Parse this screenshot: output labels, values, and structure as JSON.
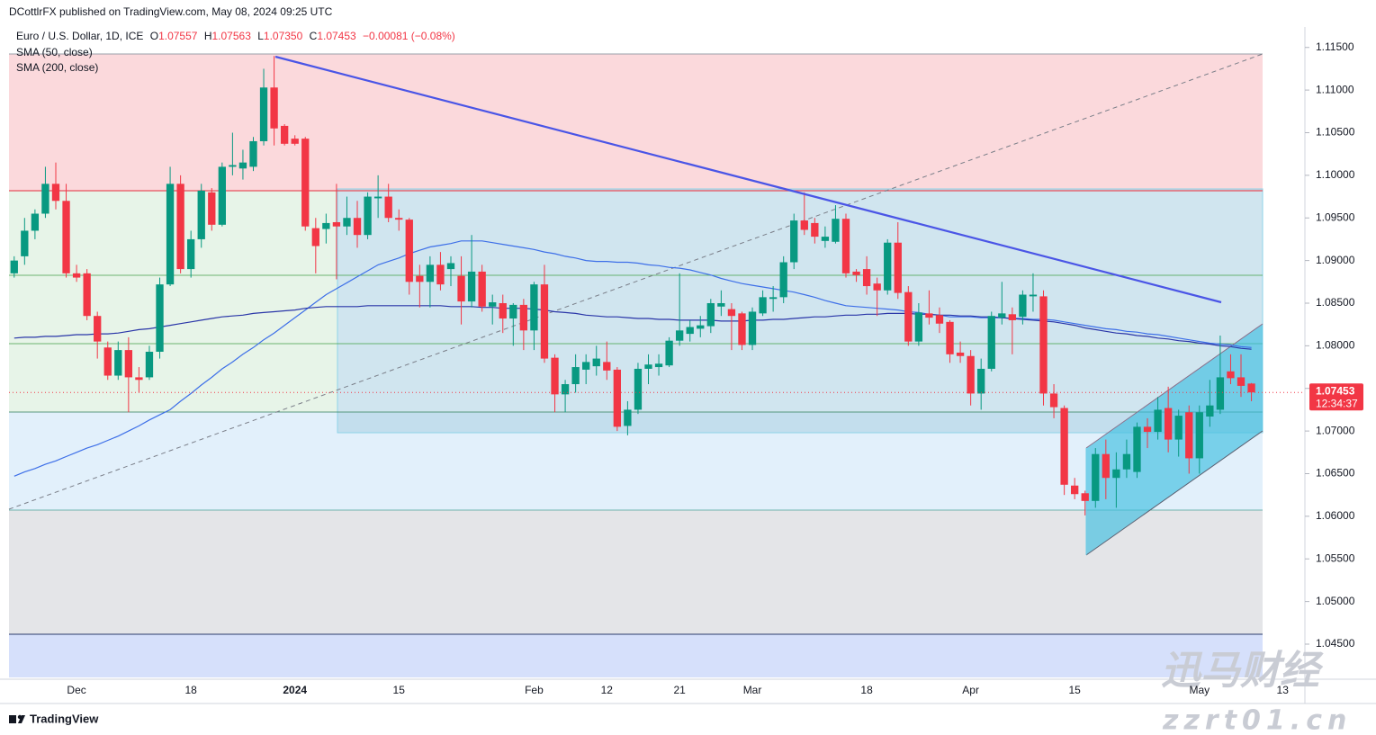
{
  "header": {
    "published": "DCottlrFX published on TradingView.com, May 08, 2024 09:25 UTC",
    "ohlc": [
      {
        "label": "O",
        "value": "1.07557"
      },
      {
        "label": "H",
        "value": "1.07563"
      },
      {
        "label": "L",
        "value": "1.07350"
      },
      {
        "label": "C",
        "value": "1.07453"
      }
    ],
    "change": "−0.00081 (−0.08%)"
  },
  "footer": {
    "brand": "TradingView"
  },
  "watermark": {
    "name": "迅马财经",
    "url": "zzrt01.cn"
  },
  "chart_data": {
    "type": "candlestick",
    "title": "Euro / U.S. Dollar, 1D, ICE",
    "up_color": "#089981",
    "down_color": "#f23645",
    "grid": false,
    "last_price_label": "1.07453",
    "countdown": "12:34:37",
    "categories": [
      null,
      null,
      null,
      null,
      null,
      null,
      "Dec",
      null,
      null,
      null,
      null,
      null,
      null,
      null,
      null,
      null,
      null,
      "18",
      null,
      null,
      null,
      null,
      null,
      null,
      null,
      null,
      null,
      "2024",
      null,
      null,
      null,
      null,
      null,
      null,
      null,
      null,
      null,
      "15",
      null,
      null,
      null,
      null,
      null,
      null,
      null,
      null,
      null,
      null,
      null,
      null,
      "Feb",
      null,
      null,
      null,
      null,
      null,
      null,
      "12",
      null,
      null,
      null,
      null,
      null,
      null,
      "21",
      null,
      null,
      null,
      null,
      null,
      null,
      "Mar",
      null,
      null,
      null,
      null,
      null,
      null,
      null,
      null,
      null,
      null,
      "18",
      null,
      null,
      null,
      null,
      null,
      null,
      null,
      null,
      null,
      "Apr",
      null,
      null,
      null,
      null,
      null,
      null,
      null,
      null,
      null,
      "15",
      null,
      null,
      null,
      null,
      null,
      null,
      null,
      null,
      null,
      null,
      null,
      "May",
      null,
      null,
      null,
      null,
      null,
      null,
      null,
      "13"
    ],
    "open": [
      1.0885,
      1.0905,
      1.0935,
      1.0955,
      1.099,
      1.097,
      1.0885,
      1.0885,
      1.0835,
      1.0798,
      1.0765,
      1.0795,
      1.0763,
      1.0763,
      1.0793,
      1.0872,
      1.099,
      1.089,
      1.0925,
      1.098,
      1.0942,
      1.101,
      1.1008,
      1.101,
      1.104,
      1.1103,
      1.1058,
      1.1043,
      1.1043,
      1.0938,
      1.0937,
      1.0945,
      1.094,
      1.095,
      1.093,
      1.0973,
      1.0975,
      1.095,
      1.0948,
      1.0882,
      1.0875,
      1.0895,
      1.089,
      1.0882,
      1.0852,
      1.0887,
      1.0846,
      1.085,
      1.0832,
      1.0848,
      1.0818,
      1.0872,
      1.0786,
      1.0743,
      1.0755,
      1.0772,
      1.0776,
      1.0781,
      1.0772,
      1.0706,
      1.0725,
      1.0773,
      1.0775,
      1.0777,
      1.0806,
      1.0814,
      1.082,
      1.0823,
      1.0846,
      1.0843,
      1.0838,
      1.0801,
      1.0838,
      1.0855,
      1.0857,
      1.0898,
      1.0947,
      1.0944,
      1.0923,
      1.0922,
      1.0949,
      1.0887,
      1.089,
      1.0873,
      1.0865,
      1.0921,
      1.0863,
      1.0805,
      1.0838,
      1.0836,
      1.0828,
      1.0792,
      1.0788,
      1.0744,
      1.0773,
      1.0833,
      1.0837,
      1.0834,
      1.0858,
      1.0858,
      1.0744,
      1.0727,
      1.0636,
      1.0627,
      1.0618,
      1.0673,
      1.0645,
      1.0655,
      1.0652,
      1.0705,
      1.0699,
      1.0727,
      1.069,
      1.0722,
      1.0668,
      1.0717,
      1.0725,
      1.077,
      1.0763,
      1.07557,
      null,
      null,
      null
    ],
    "high": [
      1.0905,
      1.095,
      1.096,
      1.101,
      1.1015,
      1.099,
      1.0895,
      1.089,
      1.084,
      1.0805,
      1.0805,
      1.081,
      1.0775,
      1.08,
      1.088,
      1.101,
      1.1,
      1.0935,
      1.099,
      1.0985,
      1.1015,
      1.105,
      1.103,
      1.1045,
      1.1125,
      1.114,
      1.106,
      1.1047,
      1.1045,
      1.095,
      1.0955,
      1.099,
      1.0975,
      1.097,
      1.098,
      1.1,
      1.099,
      1.096,
      1.095,
      1.0895,
      1.0905,
      1.091,
      1.0905,
      1.0905,
      1.093,
      1.0895,
      1.086,
      1.086,
      1.085,
      1.0855,
      1.0875,
      1.0895,
      1.079,
      1.076,
      1.079,
      1.079,
      1.08,
      1.0805,
      1.0775,
      1.0735,
      1.078,
      1.079,
      1.079,
      1.081,
      1.0885,
      1.083,
      1.0835,
      1.0855,
      1.0865,
      1.085,
      1.084,
      1.0845,
      1.0865,
      1.087,
      1.0905,
      1.0955,
      1.098,
      1.095,
      1.094,
      1.0965,
      1.0955,
      1.089,
      1.0905,
      1.088,
      1.0925,
      1.0945,
      1.087,
      1.085,
      1.0865,
      1.0845,
      1.083,
      1.0805,
      1.0795,
      1.0785,
      1.084,
      1.0875,
      1.0845,
      1.0865,
      1.0885,
      1.0865,
      1.0755,
      1.073,
      1.0645,
      1.063,
      1.068,
      1.069,
      1.0675,
      1.069,
      1.071,
      1.0715,
      1.074,
      1.0752,
      1.0725,
      1.073,
      1.073,
      1.076,
      1.0812,
      1.079,
      1.079,
      1.07563,
      null,
      null,
      null
    ],
    "low": [
      1.088,
      1.0895,
      1.0925,
      1.095,
      1.096,
      1.088,
      1.0875,
      1.083,
      1.0785,
      1.076,
      1.076,
      1.0722,
      1.0745,
      1.076,
      1.0785,
      1.087,
      1.0885,
      1.088,
      1.0915,
      1.0935,
      1.094,
      1.1,
      1.0995,
      1.1005,
      1.1035,
      1.1035,
      1.1035,
      1.1035,
      1.0935,
      1.0885,
      1.092,
      1.0878,
      1.093,
      1.0915,
      1.0925,
      1.095,
      1.0945,
      1.0935,
      1.086,
      1.0845,
      1.0845,
      1.0865,
      1.087,
      1.0825,
      1.0845,
      1.084,
      1.0825,
      1.0815,
      1.08,
      1.0795,
      1.0795,
      1.078,
      1.0722,
      1.0722,
      1.0745,
      1.0755,
      1.0765,
      1.076,
      1.07,
      1.0695,
      1.072,
      1.0755,
      1.0765,
      1.0775,
      1.08,
      1.0805,
      1.081,
      1.0815,
      1.0835,
      1.0795,
      1.0795,
      1.0795,
      1.0835,
      1.084,
      1.085,
      1.089,
      1.093,
      1.092,
      1.0915,
      1.092,
      1.088,
      1.0875,
      1.086,
      1.0835,
      1.086,
      1.0855,
      1.08,
      1.08,
      1.0825,
      1.0815,
      1.078,
      1.078,
      1.073,
      1.0725,
      1.077,
      1.0825,
      1.079,
      1.0825,
      1.084,
      1.073,
      1.0715,
      1.0625,
      1.062,
      1.0601,
      1.061,
      1.062,
      1.061,
      1.0645,
      1.0645,
      1.068,
      1.069,
      1.0675,
      1.067,
      1.065,
      1.065,
      1.0705,
      1.072,
      1.0755,
      1.074,
      1.0735,
      null,
      null,
      null
    ],
    "close": [
      1.09,
      1.0935,
      1.0955,
      1.099,
      1.097,
      1.0885,
      1.088,
      1.0835,
      1.0805,
      1.0765,
      1.0795,
      1.0763,
      1.076,
      1.0793,
      1.0872,
      1.099,
      1.089,
      1.0925,
      1.0982,
      1.0942,
      1.101,
      1.1012,
      1.1015,
      1.104,
      1.1103,
      1.1055,
      1.1037,
      1.1037,
      1.094,
      1.0917,
      1.0944,
      1.094,
      1.095,
      1.093,
      1.0975,
      1.0975,
      1.095,
      1.0948,
      1.0875,
      1.0875,
      1.0895,
      1.0872,
      1.0897,
      1.0852,
      1.0887,
      1.0846,
      1.0851,
      1.0832,
      1.0848,
      1.0818,
      1.0872,
      1.0785,
      1.0743,
      1.0755,
      1.0775,
      1.0781,
      1.0785,
      1.0771,
      1.0705,
      1.0725,
      1.0773,
      1.0778,
      1.0779,
      1.0806,
      1.0818,
      1.0822,
      1.0824,
      1.085,
      1.085,
      1.0835,
      1.0801,
      1.084,
      1.0857,
      1.0857,
      1.0898,
      1.0947,
      1.0936,
      1.0928,
      1.0928,
      1.0949,
      1.0885,
      1.0883,
      1.087,
      1.0865,
      1.0921,
      1.0862,
      1.0805,
      1.0839,
      1.0833,
      1.0826,
      1.079,
      1.0788,
      1.0744,
      1.0773,
      1.0835,
      1.0838,
      1.083,
      1.086,
      1.086,
      1.0744,
      1.0728,
      1.0637,
      1.0626,
      1.0618,
      1.0673,
      1.0645,
      1.0655,
      1.0673,
      1.0705,
      1.0699,
      1.0725,
      1.069,
      1.0718,
      1.0668,
      1.0722,
      1.073,
      1.0763,
      1.0762,
      1.0753,
      1.07453,
      null,
      null,
      null
    ],
    "series": [
      {
        "name": "SMA (50, close)",
        "color": "#3d6fe8",
        "values": [
          1.0647,
          1.0652,
          1.0656,
          1.0661,
          1.0665,
          1.067,
          1.0675,
          1.068,
          1.0684,
          1.0689,
          1.0694,
          1.07,
          1.0706,
          1.0713,
          1.0719,
          1.0725,
          1.0735,
          1.0744,
          1.0754,
          1.0763,
          1.0773,
          1.0781,
          1.079,
          1.0798,
          1.0807,
          1.0815,
          1.0824,
          1.0833,
          1.0842,
          1.0851,
          1.086,
          1.0867,
          1.0874,
          1.0881,
          1.0888,
          1.0895,
          1.0899,
          1.0903,
          1.0908,
          1.0912,
          1.0916,
          1.0918,
          1.092,
          1.0923,
          1.0923,
          1.0923,
          1.0921,
          1.0919,
          1.0917,
          1.0915,
          1.0913,
          1.091,
          1.0908,
          1.0905,
          1.0903,
          1.09,
          1.0899,
          1.0899,
          1.0898,
          1.0898,
          1.0897,
          1.0895,
          1.0894,
          1.0892,
          1.0891,
          1.0889,
          1.0886,
          1.0883,
          1.0879,
          1.0876,
          1.0873,
          1.0871,
          1.0869,
          1.0867,
          1.0865,
          1.0863,
          1.086,
          1.0857,
          1.0853,
          1.085,
          1.0847,
          1.0846,
          1.0845,
          1.0844,
          1.0843,
          1.0842,
          1.084,
          1.0839,
          1.0837,
          1.0836,
          1.0834,
          1.0834,
          1.0834,
          1.0833,
          1.0833,
          1.0833,
          1.0832,
          1.0832,
          1.0831,
          1.0831,
          1.083,
          1.0828,
          1.0826,
          1.0824,
          1.0822,
          1.082,
          1.0819,
          1.0817,
          1.0816,
          1.0814,
          1.0813,
          1.0811,
          1.0809,
          1.0807,
          1.0805,
          1.0803,
          1.0802,
          1.0801,
          1.0799,
          1.0798,
          null,
          null,
          null
        ]
      },
      {
        "name": "SMA (200, close)",
        "color": "#2a36a8",
        "values": [
          1.0809,
          1.081,
          1.081,
          1.0811,
          1.0811,
          1.0812,
          1.0813,
          1.0813,
          1.0814,
          1.0814,
          1.0815,
          1.0817,
          1.0819,
          1.082,
          1.0822,
          1.0824,
          1.0826,
          1.0828,
          1.083,
          1.0832,
          1.0834,
          1.0835,
          1.0836,
          1.0838,
          1.0839,
          1.084,
          1.0841,
          1.0842,
          1.0844,
          1.0845,
          1.0846,
          1.0846,
          1.0846,
          1.0846,
          1.0847,
          1.0847,
          1.0847,
          1.0847,
          1.0847,
          1.0847,
          1.0847,
          1.0847,
          1.0846,
          1.0846,
          1.0846,
          1.0845,
          1.0845,
          1.0844,
          1.0844,
          1.0844,
          1.0843,
          1.0842,
          1.084,
          1.0839,
          1.0838,
          1.0836,
          1.0835,
          1.0834,
          1.0834,
          1.0833,
          1.0832,
          1.0832,
          1.0831,
          1.0831,
          1.083,
          1.083,
          1.083,
          1.083,
          1.0829,
          1.0829,
          1.0829,
          1.083,
          1.083,
          1.0831,
          1.0831,
          1.0832,
          1.0833,
          1.0834,
          1.0834,
          1.0835,
          1.0836,
          1.0836,
          1.0837,
          1.0837,
          1.0838,
          1.0838,
          1.0838,
          1.0837,
          1.0837,
          1.0836,
          1.0836,
          1.0835,
          1.0835,
          1.0834,
          1.0834,
          1.0833,
          1.0832,
          1.0831,
          1.083,
          1.0829,
          1.0828,
          1.0826,
          1.0824,
          1.0821,
          1.0819,
          1.0817,
          1.0815,
          1.0814,
          1.0812,
          1.0811,
          1.0809,
          1.0808,
          1.0806,
          1.0805,
          1.0803,
          1.0802,
          1.08,
          1.0799,
          1.0797,
          1.0796,
          null,
          null,
          null
        ]
      }
    ],
    "ylim": [
      1.0412,
      1.1174
    ],
    "yticks": [
      {
        "value": 1.115,
        "label": "1.11500"
      },
      {
        "value": 1.11,
        "label": "1.11000"
      },
      {
        "value": 1.105,
        "label": "1.10500"
      },
      {
        "value": 1.1,
        "label": "1.10000"
      },
      {
        "value": 1.095,
        "label": "1.09500"
      },
      {
        "value": 1.09,
        "label": "1.09000"
      },
      {
        "value": 1.085,
        "label": "1.08500"
      },
      {
        "value": 1.08,
        "label": "1.08000"
      },
      {
        "value": 1.075,
        "label": "1.07500"
      },
      {
        "value": 1.07,
        "label": "1.07000"
      },
      {
        "value": 1.065,
        "label": "1.06500"
      },
      {
        "value": 1.06,
        "label": "1.06000"
      },
      {
        "value": 1.055,
        "label": "1.05500"
      },
      {
        "value": 1.05,
        "label": "1.05000"
      },
      {
        "value": 1.045,
        "label": "1.04500"
      }
    ]
  }
}
